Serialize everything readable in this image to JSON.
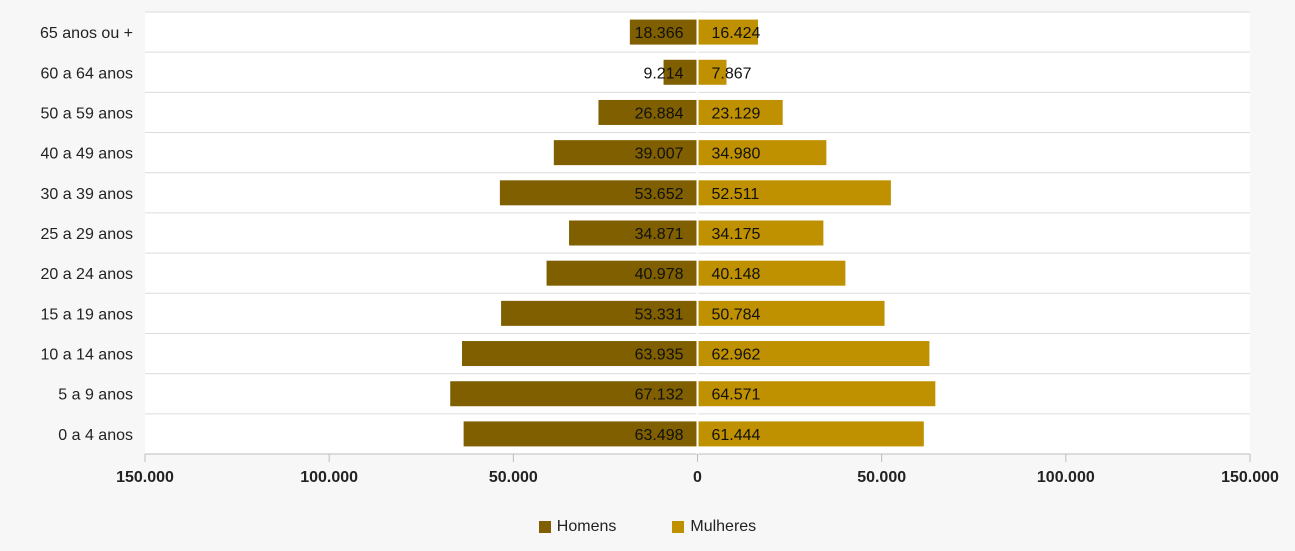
{
  "chart_data": {
    "type": "bar",
    "orientation": "horizontal",
    "categories": [
      "65 anos ou +",
      "60 a 64 anos",
      "50 a 59 anos",
      "40 a 49 anos",
      "30 a 39 anos",
      "25 a 29 anos",
      "20 a 24 anos",
      "15 a 19 anos",
      "10 a 14 anos",
      "5 a 9 anos",
      "0 a 4 anos"
    ],
    "series": [
      {
        "name": "Homens",
        "color": "#7f5f00",
        "direction": "left",
        "values": [
          18366,
          9214,
          26884,
          39007,
          53652,
          34871,
          40978,
          53331,
          63935,
          67132,
          63498
        ],
        "labels": [
          "18.366",
          "9.214",
          "26.884",
          "39.007",
          "53.652",
          "34.871",
          "40.978",
          "53.331",
          "63.935",
          "67.132",
          "63.498"
        ]
      },
      {
        "name": "Mulheres",
        "color": "#bf9000",
        "direction": "right",
        "values": [
          16424,
          7867,
          23129,
          34980,
          52511,
          34175,
          40148,
          50784,
          62962,
          64571,
          61444
        ],
        "labels": [
          "16.424",
          "7.867",
          "23.129",
          "34.980",
          "52.511",
          "34.175",
          "40.148",
          "50.784",
          "62.962",
          "64.571",
          "61.444"
        ]
      }
    ],
    "xlim": [
      -150000,
      150000
    ],
    "xticks": [
      -150000,
      -100000,
      -50000,
      0,
      50000,
      100000,
      150000
    ],
    "xtick_labels": [
      "150.000",
      "100.000",
      "50.000",
      "0",
      "50.000",
      "100.000",
      "150.000"
    ],
    "grid": true,
    "legend_position": "bottom",
    "title": "",
    "xlabel": "",
    "ylabel": ""
  }
}
